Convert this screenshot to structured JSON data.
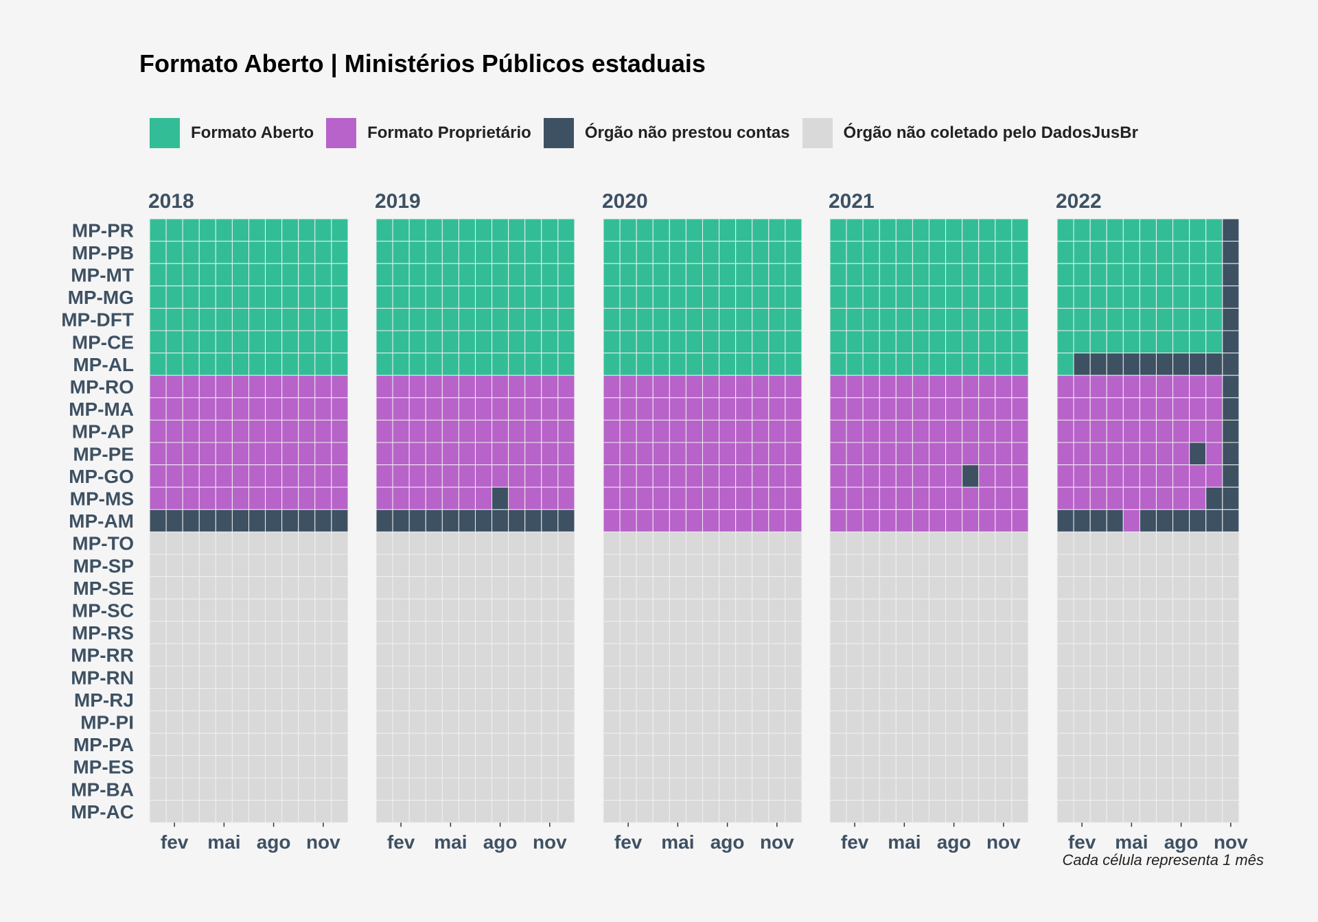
{
  "chart_data": {
    "type": "heatmap",
    "title": "Formato Aberto | Ministérios Públicos estaduais",
    "caption": "Cada célula representa 1 mês",
    "legend_placement": "top",
    "categories": [
      "Formato Aberto",
      "Formato Proprietário",
      "Órgão não prestou contas",
      "Órgão não coletado pelo DadosJusBr"
    ],
    "colors": {
      "Formato Aberto": "#33bd96",
      "Formato Proprietário": "#b863c9",
      "Órgão não prestou contas": "#3e5163",
      "Órgão não coletado pelo DadosJusBr": "#d9d9d9"
    },
    "codes": {
      "A": "Formato Aberto",
      "P": "Formato Proprietário",
      "N": "Órgão não prestou contas",
      "X": "Órgão não coletado pelo DadosJusBr"
    },
    "x_ticks": [
      "fev",
      "mai",
      "ago",
      "nov"
    ],
    "x_tick_months": [
      2,
      5,
      8,
      11
    ],
    "years": [
      "2018",
      "2019",
      "2020",
      "2021",
      "2022"
    ],
    "y_categories": [
      "MP-PR",
      "MP-PB",
      "MP-MT",
      "MP-MG",
      "MP-DFT",
      "MP-CE",
      "MP-AL",
      "MP-RO",
      "MP-MA",
      "MP-AP",
      "MP-PE",
      "MP-GO",
      "MP-MS",
      "MP-AM",
      "MP-TO",
      "MP-SP",
      "MP-SE",
      "MP-SC",
      "MP-RS",
      "MP-RR",
      "MP-RN",
      "MP-RJ",
      "MP-PI",
      "MP-PA",
      "MP-ES",
      "MP-BA",
      "MP-AC"
    ],
    "cells": {
      "2018": {
        "MP-PR": "AAAAAAAAAAAA",
        "MP-PB": "AAAAAAAAAAAA",
        "MP-MT": "AAAAAAAAAAAA",
        "MP-MG": "AAAAAAAAAAAA",
        "MP-DFT": "AAAAAAAAAAAA",
        "MP-CE": "AAAAAAAAAAAA",
        "MP-AL": "AAAAAAAAAAAA",
        "MP-RO": "PPPPPPPPPPPP",
        "MP-MA": "PPPPPPPPPPPP",
        "MP-AP": "PPPPPPPPPPPP",
        "MP-PE": "PPPPPPPPPPPP",
        "MP-GO": "PPPPPPPPPPPP",
        "MP-MS": "PPPPPPPPPPPP",
        "MP-AM": "NNNNNNNNNNNN",
        "MP-TO": "XXXXXXXXXXXX",
        "MP-SP": "XXXXXXXXXXXX",
        "MP-SE": "XXXXXXXXXXXX",
        "MP-SC": "XXXXXXXXXXXX",
        "MP-RS": "XXXXXXXXXXXX",
        "MP-RR": "XXXXXXXXXXXX",
        "MP-RN": "XXXXXXXXXXXX",
        "MP-RJ": "XXXXXXXXXXXX",
        "MP-PI": "XXXXXXXXXXXX",
        "MP-PA": "XXXXXXXXXXXX",
        "MP-ES": "XXXXXXXXXXXX",
        "MP-BA": "XXXXXXXXXXXX",
        "MP-AC": "XXXXXXXXXXXX"
      },
      "2019": {
        "MP-PR": "AAAAAAAAAAAA",
        "MP-PB": "AAAAAAAAAAAA",
        "MP-MT": "AAAAAAAAAAAA",
        "MP-MG": "AAAAAAAAAAAA",
        "MP-DFT": "AAAAAAAAAAAA",
        "MP-CE": "AAAAAAAAAAAA",
        "MP-AL": "AAAAAAAAAAAA",
        "MP-RO": "PPPPPPPPPPPP",
        "MP-MA": "PPPPPPPPPPPP",
        "MP-AP": "PPPPPPPPPPPP",
        "MP-PE": "PPPPPPPPPPPP",
        "MP-GO": "PPPPPPPPPPPP",
        "MP-MS": "PPPPPPPNPPPP",
        "MP-AM": "NNNNNNNNNNNN",
        "MP-TO": "XXXXXXXXXXXX",
        "MP-SP": "XXXXXXXXXXXX",
        "MP-SE": "XXXXXXXXXXXX",
        "MP-SC": "XXXXXXXXXXXX",
        "MP-RS": "XXXXXXXXXXXX",
        "MP-RR": "XXXXXXXXXXXX",
        "MP-RN": "XXXXXXXXXXXX",
        "MP-RJ": "XXXXXXXXXXXX",
        "MP-PI": "XXXXXXXXXXXX",
        "MP-PA": "XXXXXXXXXXXX",
        "MP-ES": "XXXXXXXXXXXX",
        "MP-BA": "XXXXXXXXXXXX",
        "MP-AC": "XXXXXXXXXXXX"
      },
      "2020": {
        "MP-PR": "AAAAAAAAAAAA",
        "MP-PB": "AAAAAAAAAAAA",
        "MP-MT": "AAAAAAAAAAAA",
        "MP-MG": "AAAAAAAAAAAA",
        "MP-DFT": "AAAAAAAAAAAA",
        "MP-CE": "AAAAAAAAAAAA",
        "MP-AL": "AAAAAAAAAAAA",
        "MP-RO": "PPPPPPPPPPPP",
        "MP-MA": "PPPPPPPPPPPP",
        "MP-AP": "PPPPPPPPPPPP",
        "MP-PE": "PPPPPPPPPPPP",
        "MP-GO": "PPPPPPPPPPPP",
        "MP-MS": "PPPPPPPPPPPP",
        "MP-AM": "PPPPPPPPPPPP",
        "MP-TO": "XXXXXXXXXXXX",
        "MP-SP": "XXXXXXXXXXXX",
        "MP-SE": "XXXXXXXXXXXX",
        "MP-SC": "XXXXXXXXXXXX",
        "MP-RS": "XXXXXXXXXXXX",
        "MP-RR": "XXXXXXXXXXXX",
        "MP-RN": "XXXXXXXXXXXX",
        "MP-RJ": "XXXXXXXXXXXX",
        "MP-PI": "XXXXXXXXXXXX",
        "MP-PA": "XXXXXXXXXXXX",
        "MP-ES": "XXXXXXXXXXXX",
        "MP-BA": "XXXXXXXXXXXX",
        "MP-AC": "XXXXXXXXXXXX"
      },
      "2021": {
        "MP-PR": "AAAAAAAAAAAA",
        "MP-PB": "AAAAAAAAAAAA",
        "MP-MT": "AAAAAAAAAAAA",
        "MP-MG": "AAAAAAAAAAAA",
        "MP-DFT": "AAAAAAAAAAAA",
        "MP-CE": "AAAAAAAAAAAA",
        "MP-AL": "AAAAAAAAAAAA",
        "MP-RO": "PPPPPPPPPPPP",
        "MP-MA": "PPPPPPPPPPPP",
        "MP-AP": "PPPPPPPPPPPP",
        "MP-PE": "PPPPPPPPPPPP",
        "MP-GO": "PPPPPPPPNPPP",
        "MP-MS": "PPPPPPPPPPPP",
        "MP-AM": "PPPPPPPPPPPP",
        "MP-TO": "XXXXXXXXXXXX",
        "MP-SP": "XXXXXXXXXXXX",
        "MP-SE": "XXXXXXXXXXXX",
        "MP-SC": "XXXXXXXXXXXX",
        "MP-RS": "XXXXXXXXXXXX",
        "MP-RR": "XXXXXXXXXXXX",
        "MP-RN": "XXXXXXXXXXXX",
        "MP-RJ": "XXXXXXXXXXXX",
        "MP-PI": "XXXXXXXXXXXX",
        "MP-PA": "XXXXXXXXXXXX",
        "MP-ES": "XXXXXXXXXXXX",
        "MP-BA": "XXXXXXXXXXXX",
        "MP-AC": "XXXXXXXXXXXX"
      },
      "2022": {
        "MP-PR": "AAAAAAAAAAN",
        "MP-PB": "AAAAAAAAAAN",
        "MP-MT": "AAAAAAAAAAN",
        "MP-MG": "AAAAAAAAAAN",
        "MP-DFT": "AAAAAAAAAAN",
        "MP-CE": "AAAAAAAAAAN",
        "MP-AL": "ANNNNNNNNNN",
        "MP-RO": "PPPPPPPPPPN",
        "MP-MA": "PPPPPPPPPPN",
        "MP-AP": "PPPPPPPPPPN",
        "MP-PE": "PPPPPPPPNPN",
        "MP-GO": "PPPPPPPPPPN",
        "MP-MS": "PPPPPPPPPNN",
        "MP-AM": "NNNNPNNNNNN",
        "MP-TO": "XXXXXXXXXXX",
        "MP-SP": "XXXXXXXXXXX",
        "MP-SE": "XXXXXXXXXXX",
        "MP-SC": "XXXXXXXXXXX",
        "MP-RS": "XXXXXXXXXXX",
        "MP-RR": "XXXXXXXXXXX",
        "MP-RN": "XXXXXXXXXXX",
        "MP-RJ": "XXXXXXXXXXX",
        "MP-PI": "XXXXXXXXXXX",
        "MP-PA": "XXXXXXXXXXX",
        "MP-ES": "XXXXXXXXXXX",
        "MP-BA": "XXXXXXXXXXX",
        "MP-AC": "XXXXXXXXXXX"
      }
    }
  }
}
